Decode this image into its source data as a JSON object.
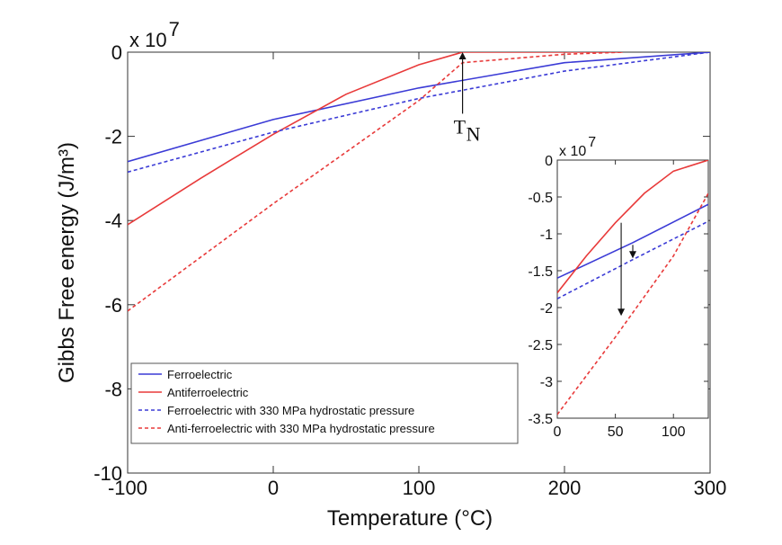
{
  "chart_data": [
    {
      "id": "main",
      "type": "line",
      "xlabel": "Temperature (°C)",
      "ylabel": "Gibbs Free energy (J/m³)",
      "xlim": [
        -100,
        300
      ],
      "ylim": [
        -10,
        0
      ],
      "y_multiplier": "x 10",
      "y_multiplier_exp": "7",
      "xticks": [
        -100,
        0,
        100,
        200,
        300
      ],
      "yticks": [
        0,
        -2,
        -4,
        -6,
        -8,
        -10
      ],
      "grid": false,
      "legend_position": "bottom-left",
      "series": [
        {
          "name": "Ferroelectric",
          "color": "#3b3bd6",
          "dash": "solid",
          "x": [
            -100,
            0,
            100,
            200,
            300
          ],
          "y": [
            -2.6,
            -1.6,
            -0.85,
            -0.25,
            0
          ]
        },
        {
          "name": "Antiferroelectric",
          "color": "#e83a3a",
          "dash": "solid",
          "x": [
            -100,
            -50,
            0,
            50,
            100,
            130,
            200,
            240
          ],
          "y": [
            -4.1,
            -3.0,
            -1.95,
            -1.0,
            -0.3,
            0,
            0,
            0
          ]
        },
        {
          "name": "Ferroelectric with 330 MPa hydrostatic pressure",
          "color": "#3b3bd6",
          "dash": "dashed",
          "x": [
            -100,
            0,
            100,
            200,
            300
          ],
          "y": [
            -2.85,
            -1.9,
            -1.1,
            -0.45,
            0
          ]
        },
        {
          "name": "Anti-ferroelectric with 330 MPa hydrostatic pressure",
          "color": "#e83a3a",
          "dash": "dashed",
          "x": [
            -100,
            0,
            100,
            130,
            200,
            240
          ],
          "y": [
            -6.15,
            -3.6,
            -1.15,
            -0.25,
            -0.05,
            0
          ]
        }
      ],
      "annotations": [
        {
          "text": "T",
          "subscript": "N",
          "arrow_x": 130,
          "arrow_from_y": -0.65,
          "arrow_to_y": 0
        }
      ]
    },
    {
      "id": "inset",
      "type": "line",
      "xlim": [
        0,
        130
      ],
      "ylim": [
        -3.5,
        0
      ],
      "y_multiplier": "x 10",
      "y_multiplier_exp": "7",
      "xticks": [
        0,
        50,
        100
      ],
      "yticks": [
        0,
        -0.5,
        -1,
        -1.5,
        -2,
        -2.5,
        -3,
        -3.5
      ],
      "grid": false,
      "series": [
        {
          "name": "Ferroelectric",
          "color": "#3b3bd6",
          "dash": "solid",
          "x": [
            0,
            65,
            130
          ],
          "y": [
            -1.6,
            -1.12,
            -0.6
          ]
        },
        {
          "name": "Antiferroelectric",
          "color": "#e83a3a",
          "dash": "solid",
          "x": [
            0,
            25,
            50,
            75,
            100,
            130
          ],
          "y": [
            -1.8,
            -1.3,
            -0.85,
            -0.45,
            -0.15,
            0
          ]
        },
        {
          "name": "Ferroelectric with 330 MPa hydrostatic pressure",
          "color": "#3b3bd6",
          "dash": "dashed",
          "x": [
            0,
            65,
            130
          ],
          "y": [
            -1.88,
            -1.35,
            -0.83
          ]
        },
        {
          "name": "Anti-ferroelectric with 330 MPa hydrostatic pressure",
          "color": "#e83a3a",
          "dash": "dashed",
          "x": [
            0,
            50,
            100,
            130
          ],
          "y": [
            -3.45,
            -2.4,
            -1.3,
            -0.45
          ]
        }
      ],
      "arrows": [
        {
          "x": 55,
          "from_y": -0.85,
          "to_y": -2.1
        },
        {
          "x": 65,
          "from_y": -1.15,
          "to_y": -1.32
        }
      ]
    }
  ]
}
